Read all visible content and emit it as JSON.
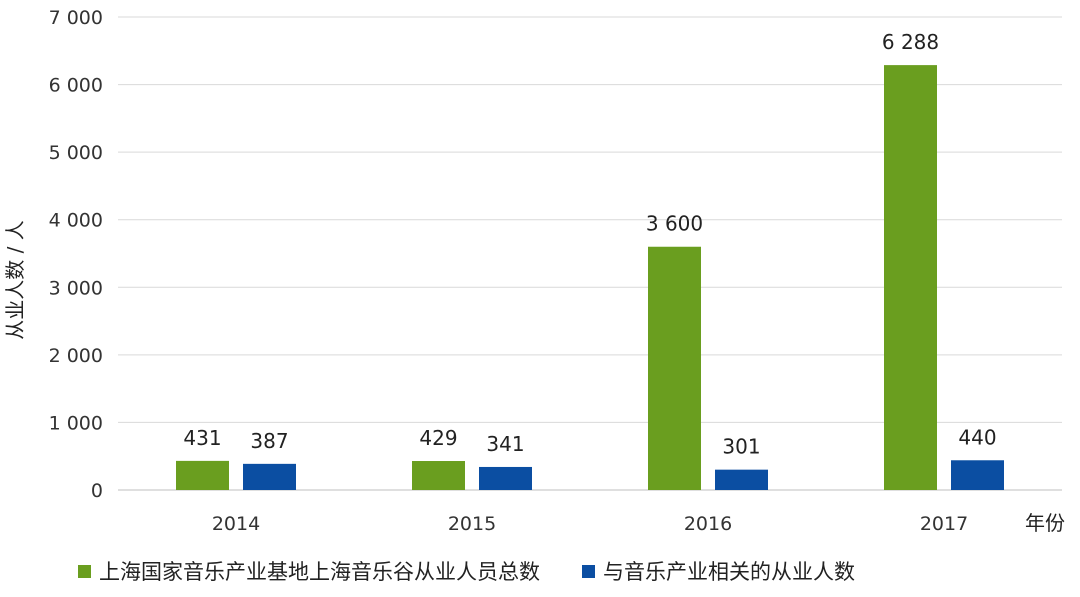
{
  "chart_data": {
    "type": "bar",
    "categories": [
      "2014",
      "2015",
      "2016",
      "2017"
    ],
    "series": [
      {
        "name": "上海国家音乐产业基地上海音乐谷从业人员总数",
        "values": [
          431,
          429,
          3600,
          6288
        ],
        "labels": [
          "431",
          "429",
          "3 600",
          "6 288"
        ],
        "color": "#6A9E1F"
      },
      {
        "name": "与音乐产业相关的从业人数",
        "values": [
          387,
          341,
          301,
          440
        ],
        "labels": [
          "387",
          "341",
          "301",
          "440"
        ],
        "color": "#0B4EA2"
      }
    ],
    "xlabel": "年份",
    "ylabel": "从业人数 / 人",
    "ylim": [
      0,
      7000
    ],
    "yticks": [
      0,
      1000,
      2000,
      3000,
      4000,
      5000,
      6000,
      7000
    ],
    "ytick_labels": [
      "0",
      "1 000",
      "2 000",
      "3 000",
      "4 000",
      "5 000",
      "6 000",
      "7 000"
    ],
    "grid": true,
    "legend_position": "bottom"
  }
}
